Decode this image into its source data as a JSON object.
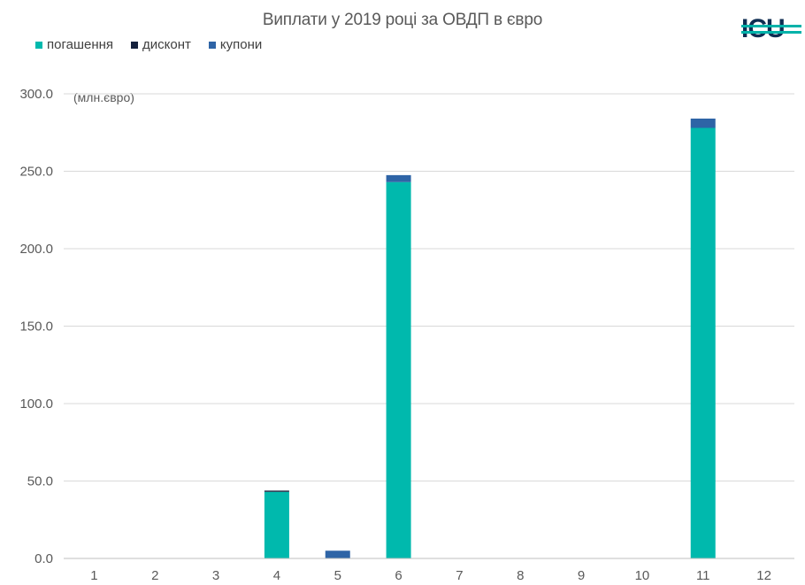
{
  "chart_data": {
    "type": "bar",
    "stacked": true,
    "title": "Виплати у 2019 році за ОВДП в євро",
    "unit_label": "(млн.євро)",
    "categories": [
      "1",
      "2",
      "3",
      "4",
      "5",
      "6",
      "7",
      "8",
      "9",
      "10",
      "11",
      "12"
    ],
    "series": [
      {
        "name": "погашення",
        "color": "#00b9ad",
        "values": [
          0,
          0,
          0,
          43,
          0,
          243,
          0,
          0,
          0,
          0,
          278,
          0
        ]
      },
      {
        "name": "дисконт",
        "color": "#14213d",
        "values": [
          0,
          0,
          0,
          0.8,
          0,
          0,
          0,
          0,
          0,
          0,
          0,
          0
        ]
      },
      {
        "name": "купони",
        "color": "#2e64a6",
        "values": [
          0,
          0,
          0,
          0,
          5,
          4.5,
          0,
          0,
          0,
          0,
          6,
          0
        ]
      }
    ],
    "yticks": [
      "0.0",
      "50.0",
      "100.0",
      "150.0",
      "200.0",
      "250.0",
      "300.0"
    ],
    "ylim": [
      0,
      300
    ],
    "grid": true,
    "legend_position": "top-left"
  },
  "logo": {
    "text": "ICU"
  }
}
